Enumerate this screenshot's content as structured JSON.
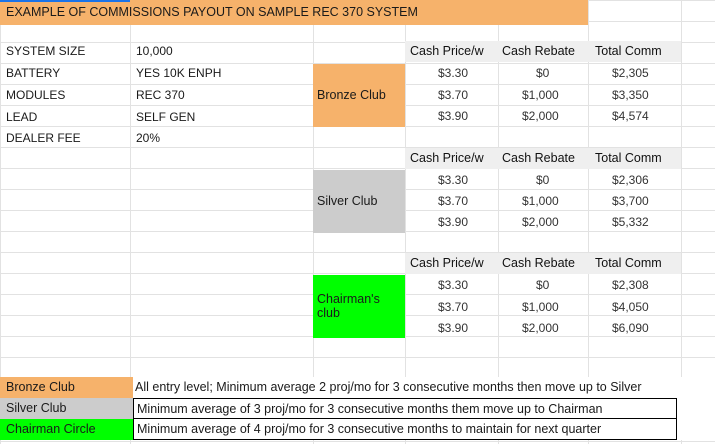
{
  "title": "EXAMPLE OF COMMISSIONS PAYOUT ON SAMPLE REC 370 SYSTEM",
  "specs": [
    {
      "label": "SYSTEM SIZE",
      "value": "10,000"
    },
    {
      "label": "BATTERY",
      "value": "YES 10K ENPH"
    },
    {
      "label": "MODULES",
      "value": "REC 370"
    },
    {
      "label": "LEAD",
      "value": "SELF GEN"
    },
    {
      "label": "DEALER FEE",
      "value": "20%"
    }
  ],
  "headers": {
    "price": "Cash Price/w",
    "rebate": "Cash Rebate",
    "comm": "Total Comm"
  },
  "tiers": [
    {
      "name": "Bronze Club",
      "color": "#f6b26b",
      "rows": [
        {
          "price": "$3.30",
          "rebate": "$0",
          "comm": "$2,305"
        },
        {
          "price": "$3.70",
          "rebate": "$1,000",
          "comm": "$3,350"
        },
        {
          "price": "$3.90",
          "rebate": "$2,000",
          "comm": "$4,574"
        }
      ]
    },
    {
      "name": "Silver Club",
      "color": "#cccccc",
      "rows": [
        {
          "price": "$3.30",
          "rebate": "$0",
          "comm": "$2,306"
        },
        {
          "price": "$3.70",
          "rebate": "$1,000",
          "comm": "$3,700"
        },
        {
          "price": "$3.90",
          "rebate": "$2,000",
          "comm": "$5,332"
        }
      ]
    },
    {
      "name": "Chairman's club",
      "color": "#00ff00",
      "rows": [
        {
          "price": "$3.30",
          "rebate": "$0",
          "comm": "$2,308"
        },
        {
          "price": "$3.70",
          "rebate": "$1,000",
          "comm": "$4,050"
        },
        {
          "price": "$3.90",
          "rebate": "$2,000",
          "comm": "$6,090"
        }
      ]
    }
  ],
  "legend": [
    {
      "name": "Bronze Club",
      "color": "#f6b26b",
      "desc": "All entry level; Minimum average 2 proj/mo for 3 consecutive months then move up to Silver"
    },
    {
      "name": "Silver Club",
      "color": "#cccccc",
      "desc": "Minimum average of 3 proj/mo for 3 consecutive months them move up to Chairman"
    },
    {
      "name": "Chairman Circle",
      "color": "#00ff00",
      "desc": "Minimum average of 4 proj/mo for 3 consecutive months to maintain for next quarter"
    }
  ]
}
